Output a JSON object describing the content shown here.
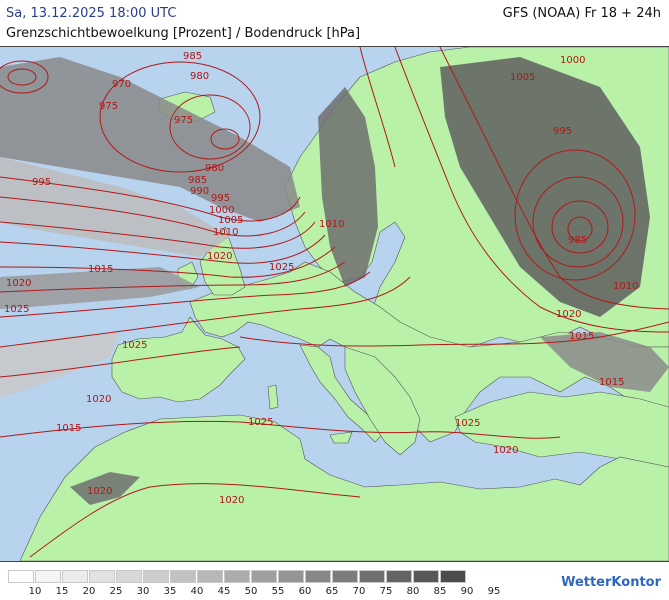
{
  "header": {
    "datetime": "Sa, 13.12.2025 18:00 UTC",
    "model": "GFS (NOAA) Fr 18 + 24h",
    "title": "Grenzschichtbewoelkung [Prozent] / Bodendruck [hPa]"
  },
  "map": {
    "sea_color": "#b7d3ee",
    "land_color": "#b9f1a9",
    "isobar_color": "#b01818",
    "isobar_labels": [
      "985",
      "980",
      "975",
      "970",
      "975",
      "995",
      "980",
      "985",
      "990",
      "995",
      "1000",
      "1005",
      "1010",
      "1015",
      "1020",
      "1025",
      "1020",
      "1025",
      "1025",
      "1020",
      "1015",
      "1020",
      "1025",
      "1010",
      "1020",
      "1005",
      "1000",
      "995",
      "985",
      "1010",
      "1020",
      "1015",
      "1025",
      "1020",
      "1015"
    ]
  },
  "legend": {
    "ticks": [
      "10",
      "15",
      "20",
      "25",
      "30",
      "35",
      "40",
      "45",
      "50",
      "55",
      "60",
      "65",
      "70",
      "75",
      "80",
      "85",
      "90",
      "95"
    ],
    "colors": [
      "#ffffff",
      "#f5f5f5",
      "#ececec",
      "#e2e2e2",
      "#d8d8d8",
      "#cdcdcd",
      "#c2c2c2",
      "#b7b7b7",
      "#acacac",
      "#a0a0a0",
      "#949494",
      "#888888",
      "#7c7c7c",
      "#707070",
      "#646464",
      "#585858",
      "#4c4c4c"
    ]
  },
  "branding": {
    "logo_text": "WetterKontor"
  }
}
